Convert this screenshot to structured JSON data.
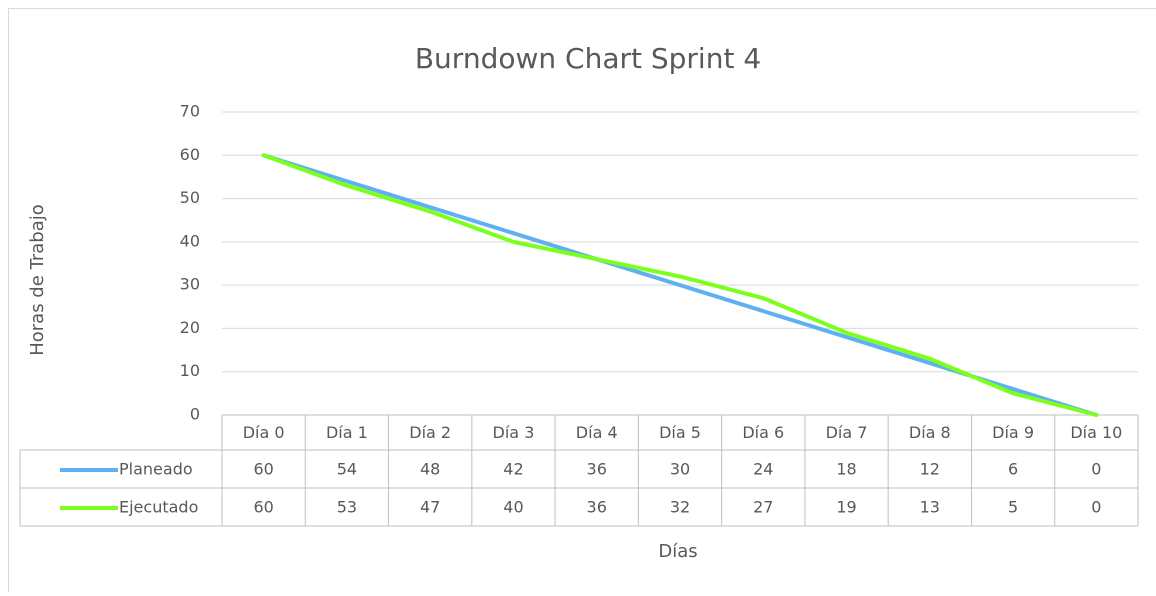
{
  "chart_data": {
    "type": "line",
    "title": "Burndown Chart Sprint 4",
    "x_label": "Días",
    "y_label": "Horas de Trabajo",
    "categories": [
      "Día 0",
      "Día 1",
      "Día 2",
      "Día 3",
      "Día 4",
      "Día 5",
      "Día 6",
      "Día 7",
      "Día 8",
      "Día 9",
      "Día 10"
    ],
    "series": [
      {
        "name": "Planeado",
        "color": "#5eb0f0",
        "values": [
          60,
          54,
          48,
          42,
          36,
          30,
          24,
          18,
          12,
          6,
          0
        ]
      },
      {
        "name": "Ejecutado",
        "color": "#7dff1e",
        "values": [
          60,
          53,
          47,
          40,
          36,
          32,
          27,
          19,
          13,
          5,
          0
        ]
      }
    ],
    "ylim": [
      0,
      70
    ],
    "yticks": [
      0,
      10,
      20,
      30,
      40,
      50,
      60,
      70
    ],
    "grid": true,
    "data_table": true
  }
}
